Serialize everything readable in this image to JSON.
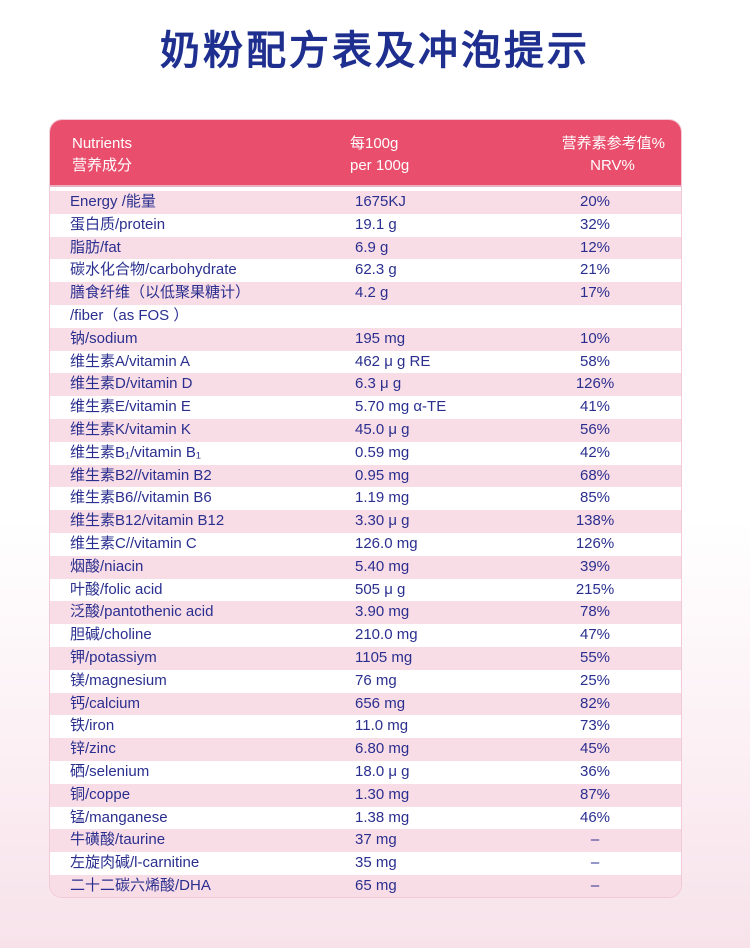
{
  "title": "奶粉配方表及冲泡提示",
  "header": {
    "col1_en": "Nutrients",
    "col1_cn": "营养成分",
    "col2_cn": "每100g",
    "col2_en": "per 100g",
    "col3_cn": "营养素参考值%",
    "col3_en": "NRV%"
  },
  "rows": [
    {
      "name": "Energy /能量",
      "value": "1675KJ",
      "nrv": "20%"
    },
    {
      "name": "蛋白质/protein",
      "value": "19.1 g",
      "nrv": "32%"
    },
    {
      "name": "脂肪/fat",
      "value": "6.9 g",
      "nrv": "12%"
    },
    {
      "name": "碳水化合物/carbohydrate",
      "value": "62.3 g",
      "nrv": "21%"
    },
    {
      "name": "膳食纤维（以低聚果糖计）",
      "value": "4.2 g",
      "nrv": "17%"
    },
    {
      "name": "/fiber（as FOS ）",
      "value": "",
      "nrv": ""
    },
    {
      "name": "钠/sodium",
      "value": "195 mg",
      "nrv": "10%"
    },
    {
      "name": "维生素A/vitamin A",
      "value": "462 μ g RE",
      "nrv": "58%"
    },
    {
      "name": "维生素D/vitamin D",
      "value": "6.3 μ g",
      "nrv": "126%"
    },
    {
      "name": "维生素E/vitamin E",
      "value": "5.70 mg α-TE",
      "nrv": "41%"
    },
    {
      "name": "维生素K/vitamin K",
      "value": "45.0 μ g",
      "nrv": "56%"
    },
    {
      "name": "维生素B₁/vitamin B₁",
      "value": "0.59 mg",
      "nrv": "42%"
    },
    {
      "name": "维生素B2//vitamin B2",
      "value": "0.95 mg",
      "nrv": "68%"
    },
    {
      "name": "维生素B6//vitamin B6",
      "value": "1.19 mg",
      "nrv": "85%"
    },
    {
      "name": "维生素B12/vitamin B12",
      "value": "3.30 μ g",
      "nrv": "138%"
    },
    {
      "name": "维生素C//vitamin C",
      "value": "126.0 mg",
      "nrv": "126%"
    },
    {
      "name": "烟酸/niacin",
      "value": "5.40 mg",
      "nrv": "39%"
    },
    {
      "name": "叶酸/folic acid",
      "value": "505 μ g",
      "nrv": "215%"
    },
    {
      "name": "泛酸/pantothenic acid",
      "value": "3.90 mg",
      "nrv": "78%"
    },
    {
      "name": "胆碱/choline",
      "value": "210.0 mg",
      "nrv": "47%"
    },
    {
      "name": "钾/potassiym",
      "value": "1105 mg",
      "nrv": "55%"
    },
    {
      "name": "镁/magnesium",
      "value": "76 mg",
      "nrv": "25%"
    },
    {
      "name": "钙/calcium",
      "value": "656 mg",
      "nrv": "82%"
    },
    {
      "name": "铁/iron",
      "value": "11.0 mg",
      "nrv": "73%"
    },
    {
      "name": "锌/zinc",
      "value": "6.80 mg",
      "nrv": "45%"
    },
    {
      "name": "硒/selenium",
      "value": "18.0 μ g",
      "nrv": "36%"
    },
    {
      "name": "铜/coppe",
      "value": "1.30 mg",
      "nrv": "87%"
    },
    {
      "name": "锰/manganese",
      "value": "1.38 mg",
      "nrv": "46%"
    },
    {
      "name": "牛磺酸/taurine",
      "value": "37 mg",
      "nrv": "–"
    },
    {
      "name": "左旋肉碱/l-carnitine",
      "value": "35 mg",
      "nrv": "–"
    },
    {
      "name": "二十二碳六烯酸/DHA",
      "value": "65 mg",
      "nrv": "–"
    }
  ],
  "colors": {
    "title": "#1f2f8f",
    "header_bg": "#e94f6d",
    "row_pink": "#f9dde6",
    "text": "#2a2f8f"
  }
}
